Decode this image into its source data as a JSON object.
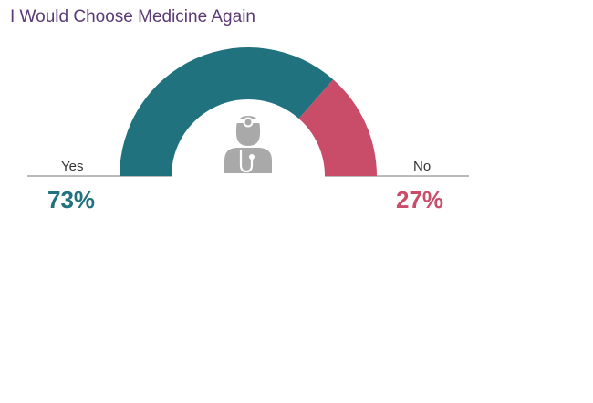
{
  "chart_data": {
    "type": "pie",
    "title": "I Would Choose Medicine Again",
    "categories": [
      "Yes",
      "No"
    ],
    "values": [
      73,
      27
    ],
    "value_labels": [
      "73%",
      "27%"
    ],
    "colors": [
      "#1f727e",
      "#c94c69"
    ]
  },
  "icons": {
    "center": "doctor-with-stethoscope-icon"
  },
  "colors": {
    "title": "#5b3a75",
    "baseline": "#a6a6a6",
    "icon": "#a9a9a9"
  }
}
